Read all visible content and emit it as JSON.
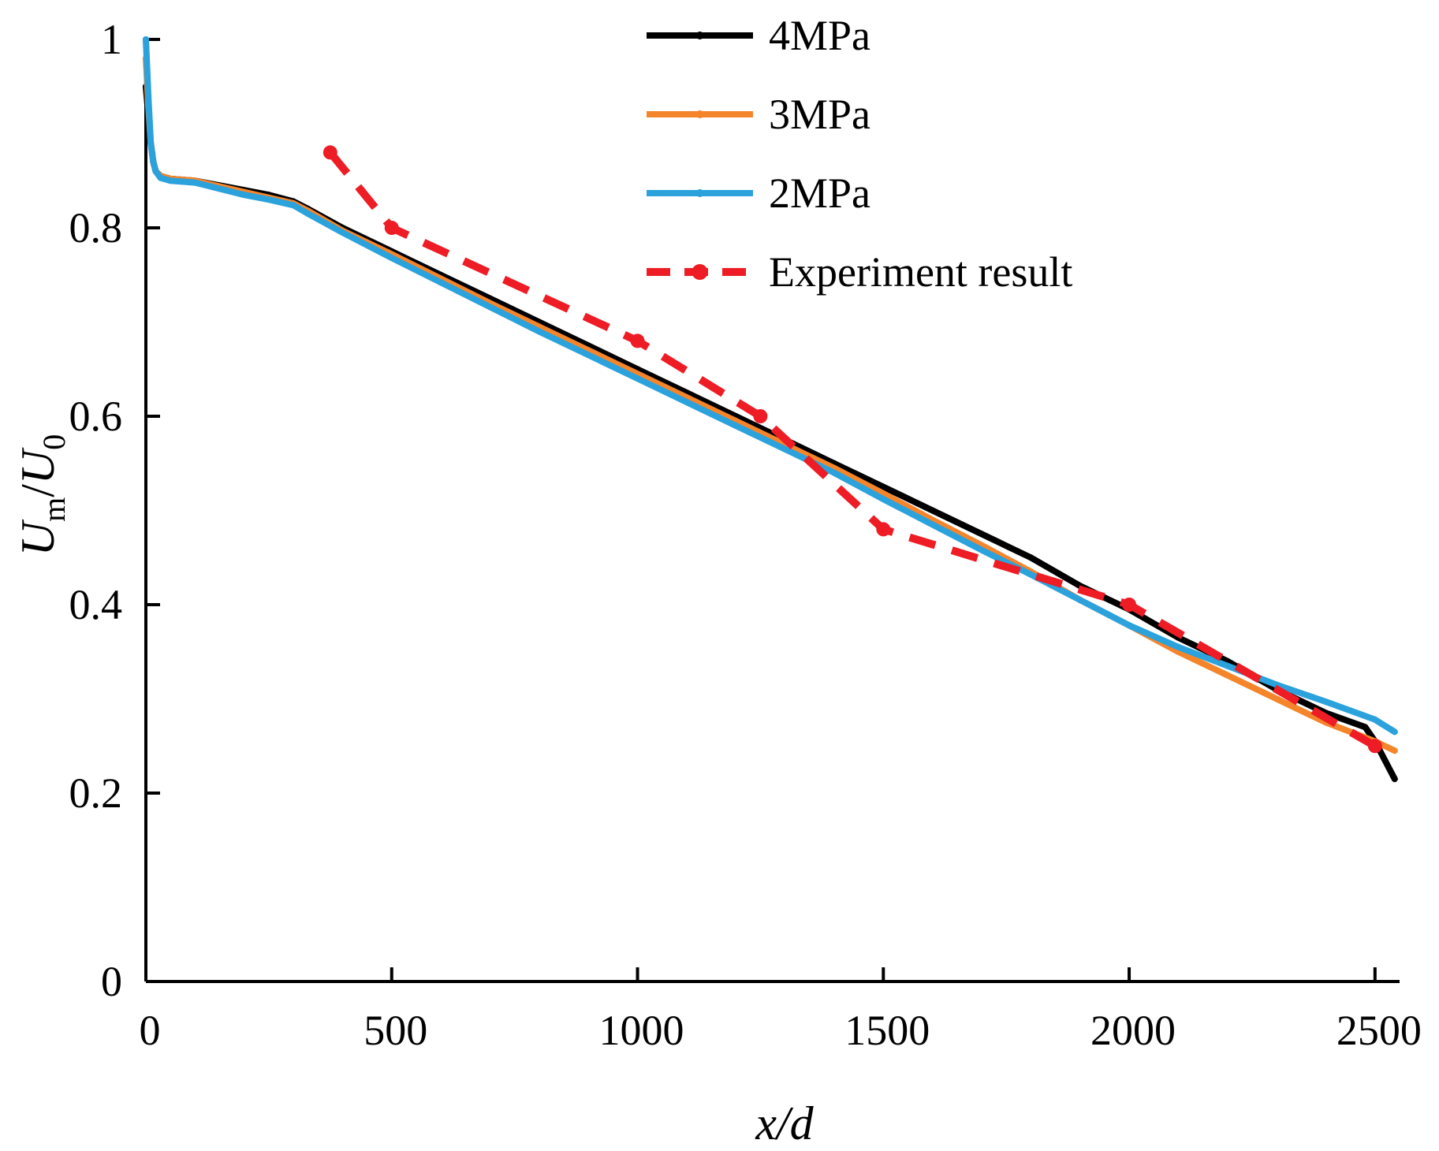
{
  "chart_data": {
    "type": "line",
    "title": "",
    "xlabel": "x/d",
    "ylabel": {
      "main": "U",
      "sub_m": "m",
      "slash": "/",
      "main2": "U",
      "sub_0": "0"
    },
    "xlim": [
      0,
      2550
    ],
    "ylim": [
      0,
      1.0
    ],
    "grid": false,
    "legend_position": "top-center",
    "x_ticks": [
      0,
      500,
      1000,
      1500,
      2000,
      2500
    ],
    "x_tick_labels": [
      "0",
      "500",
      "1000",
      "1500",
      "2000",
      "2500"
    ],
    "y_ticks": [
      0,
      0.2,
      0.4,
      0.6,
      0.8,
      1.0
    ],
    "y_tick_labels": [
      "0",
      "0.2",
      "0.4",
      "0.6",
      "0.8",
      "1"
    ],
    "series": [
      {
        "name": "4MPa",
        "color": "#000000",
        "style": "solid",
        "x": [
          0,
          5,
          10,
          15,
          20,
          30,
          50,
          100,
          200,
          250,
          300,
          330,
          400,
          500,
          600,
          700,
          800,
          900,
          1000,
          1100,
          1200,
          1300,
          1400,
          1500,
          1600,
          1700,
          1800,
          1900,
          2000,
          2100,
          2200,
          2300,
          2400,
          2480,
          2500,
          2520,
          2540
        ],
        "y": [
          0.95,
          0.92,
          0.89,
          0.87,
          0.86,
          0.855,
          0.852,
          0.85,
          0.84,
          0.835,
          0.828,
          0.82,
          0.8,
          0.775,
          0.75,
          0.725,
          0.7,
          0.675,
          0.65,
          0.625,
          0.6,
          0.575,
          0.55,
          0.525,
          0.5,
          0.475,
          0.45,
          0.42,
          0.395,
          0.365,
          0.34,
          0.31,
          0.285,
          0.27,
          0.255,
          0.235,
          0.215
        ]
      },
      {
        "name": "3MPa",
        "color": "#f5852b",
        "style": "solid",
        "x": [
          0,
          5,
          10,
          15,
          20,
          30,
          50,
          100,
          200,
          250,
          300,
          330,
          400,
          500,
          600,
          700,
          800,
          900,
          1000,
          1100,
          1200,
          1300,
          1400,
          1500,
          1600,
          1700,
          1800,
          1900,
          2000,
          2100,
          2200,
          2300,
          2400,
          2500,
          2540
        ],
        "y": [
          0.98,
          0.93,
          0.89,
          0.87,
          0.86,
          0.855,
          0.852,
          0.85,
          0.838,
          0.832,
          0.826,
          0.818,
          0.797,
          0.772,
          0.746,
          0.72,
          0.695,
          0.67,
          0.645,
          0.62,
          0.595,
          0.57,
          0.545,
          0.518,
          0.49,
          0.463,
          0.435,
          0.405,
          0.378,
          0.35,
          0.325,
          0.3,
          0.275,
          0.255,
          0.245
        ]
      },
      {
        "name": "2MPa",
        "color": "#2ba2dc",
        "style": "solid",
        "x": [
          0,
          5,
          10,
          15,
          20,
          30,
          50,
          100,
          200,
          250,
          300,
          330,
          400,
          500,
          600,
          700,
          800,
          900,
          1000,
          1100,
          1200,
          1300,
          1400,
          1500,
          1600,
          1700,
          1800,
          1900,
          2000,
          2100,
          2200,
          2300,
          2400,
          2500,
          2540
        ],
        "y": [
          1.0,
          0.94,
          0.89,
          0.87,
          0.86,
          0.853,
          0.85,
          0.848,
          0.835,
          0.83,
          0.824,
          0.815,
          0.795,
          0.768,
          0.742,
          0.716,
          0.69,
          0.665,
          0.64,
          0.615,
          0.59,
          0.565,
          0.54,
          0.512,
          0.485,
          0.458,
          0.432,
          0.405,
          0.378,
          0.355,
          0.335,
          0.315,
          0.297,
          0.278,
          0.265
        ]
      },
      {
        "name": "Experiment result",
        "color": "#ee1c25",
        "style": "dashed",
        "x": [
          375,
          500,
          1000,
          1250,
          1500,
          2000,
          2500
        ],
        "y": [
          0.88,
          0.8,
          0.68,
          0.6,
          0.48,
          0.4,
          0.25
        ]
      }
    ]
  }
}
